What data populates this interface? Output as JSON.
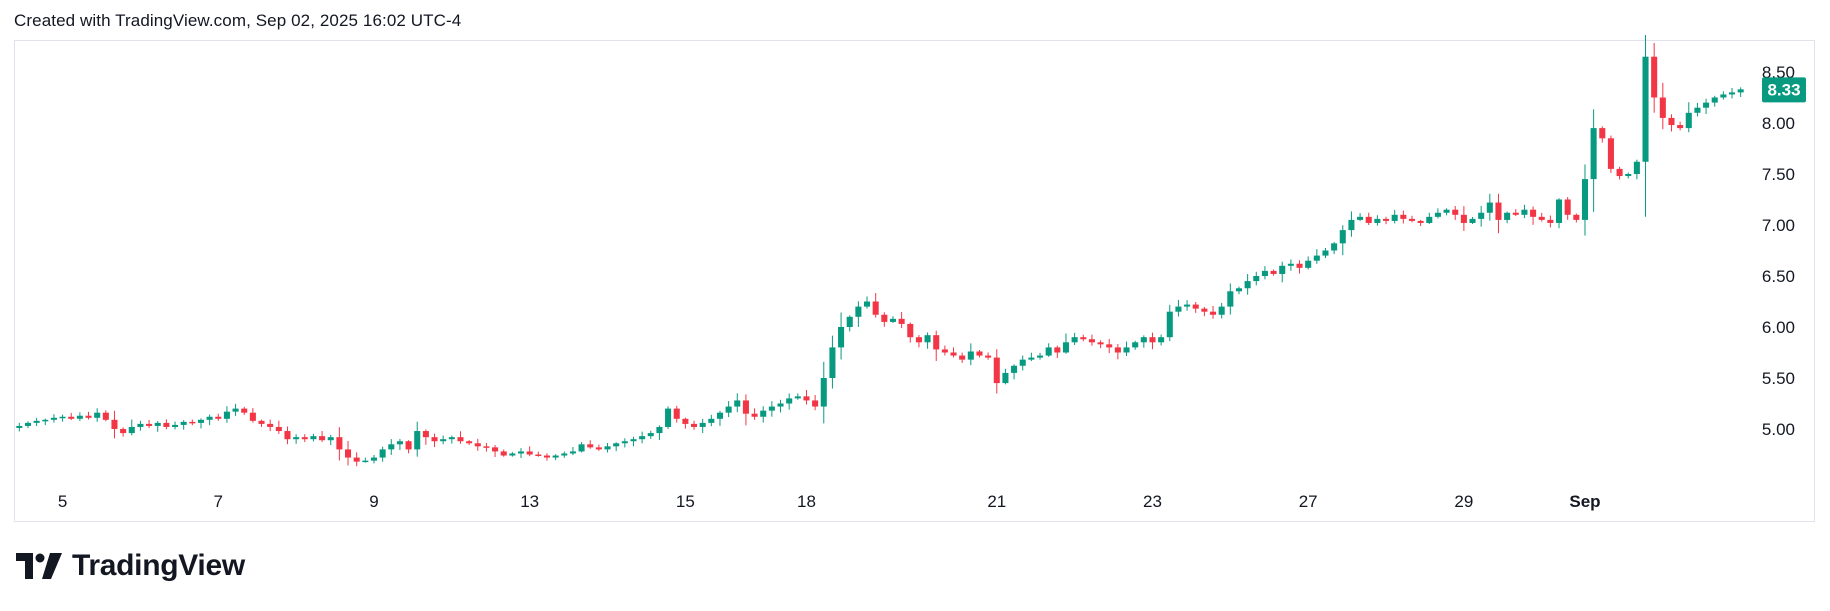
{
  "header": {
    "caption": "Created with TradingView.com, Sep 02, 2025 16:02 UTC-4"
  },
  "brand": {
    "name": "TradingView"
  },
  "colors": {
    "up": "#089981",
    "down": "#f23645",
    "badge": "#089981",
    "grid_border": "#e0e3eb",
    "text": "#131722"
  },
  "chart_data": {
    "type": "candlestick",
    "title": "",
    "last_price": 8.33,
    "last_price_label": "8.33",
    "y_ticks": [
      "5.00",
      "5.50",
      "6.00",
      "6.50",
      "7.00",
      "7.50",
      "8.00",
      "8.50"
    ],
    "ylim": [
      4.6,
      8.78
    ],
    "x_ticks": [
      {
        "label": "5",
        "index": 5
      },
      {
        "label": "7",
        "index": 23
      },
      {
        "label": "9",
        "index": 41
      },
      {
        "label": "13",
        "index": 59
      },
      {
        "label": "15",
        "index": 77
      },
      {
        "label": "18",
        "index": 91
      },
      {
        "label": "21",
        "index": 113
      },
      {
        "label": "23",
        "index": 131
      },
      {
        "label": "27",
        "index": 149
      },
      {
        "label": "29",
        "index": 167
      },
      {
        "label": "Sep",
        "index": 181
      }
    ],
    "close_path": [
      5.03,
      5.06,
      5.08,
      5.09,
      5.11,
      5.12,
      5.1,
      5.13,
      5.11,
      5.16,
      5.09,
      5.0,
      4.96,
      5.02,
      5.05,
      5.03,
      5.06,
      5.02,
      5.04,
      5.07,
      5.06,
      5.09,
      5.12,
      5.1,
      5.17,
      5.2,
      5.16,
      5.08,
      5.05,
      5.02,
      4.98,
      4.9,
      4.92,
      4.9,
      4.93,
      4.89,
      4.92,
      4.8,
      4.72,
      4.68,
      4.69,
      4.72,
      4.8,
      4.85,
      4.88,
      4.8,
      4.98,
      4.92,
      4.88,
      4.9,
      4.92,
      4.88,
      4.86,
      4.83,
      4.82,
      4.78,
      4.74,
      4.76,
      4.78,
      4.75,
      4.74,
      4.72,
      4.74,
      4.76,
      4.78,
      4.85,
      4.82,
      4.8,
      4.83,
      4.86,
      4.88,
      4.9,
      4.93,
      4.96,
      5.02,
      5.2,
      5.1,
      5.05,
      5.02,
      5.06,
      5.1,
      5.16,
      5.22,
      5.28,
      5.15,
      5.12,
      5.18,
      5.22,
      5.25,
      5.3,
      5.32,
      5.28,
      5.22,
      5.5,
      5.8,
      6.0,
      6.1,
      6.2,
      6.25,
      6.12,
      6.05,
      6.08,
      6.03,
      5.9,
      5.85,
      5.92,
      5.78,
      5.75,
      5.72,
      5.68,
      5.76,
      5.72,
      5.7,
      5.45,
      5.55,
      5.62,
      5.68,
      5.7,
      5.72,
      5.8,
      5.75,
      5.85,
      5.9,
      5.88,
      5.85,
      5.83,
      5.8,
      5.75,
      5.8,
      5.85,
      5.9,
      5.85,
      5.9,
      6.15,
      6.2,
      6.22,
      6.18,
      6.15,
      6.12,
      6.2,
      6.35,
      6.38,
      6.45,
      6.5,
      6.55,
      6.52,
      6.6,
      6.62,
      6.58,
      6.65,
      6.7,
      6.75,
      6.82,
      6.95,
      7.05,
      7.08,
      7.02,
      7.06,
      7.04,
      7.1,
      7.06,
      7.04,
      7.02,
      7.08,
      7.12,
      7.15,
      7.1,
      7.02,
      7.06,
      7.12,
      7.22,
      7.05,
      7.12,
      7.1,
      7.15,
      7.08,
      7.05,
      7.02,
      7.25,
      7.1,
      7.05,
      7.45,
      7.95,
      7.85,
      7.55,
      7.48,
      7.5,
      7.62,
      8.65,
      8.25,
      8.05,
      7.98,
      7.95,
      8.1,
      8.15,
      8.2,
      8.25,
      8.28,
      8.3,
      8.33
    ]
  }
}
